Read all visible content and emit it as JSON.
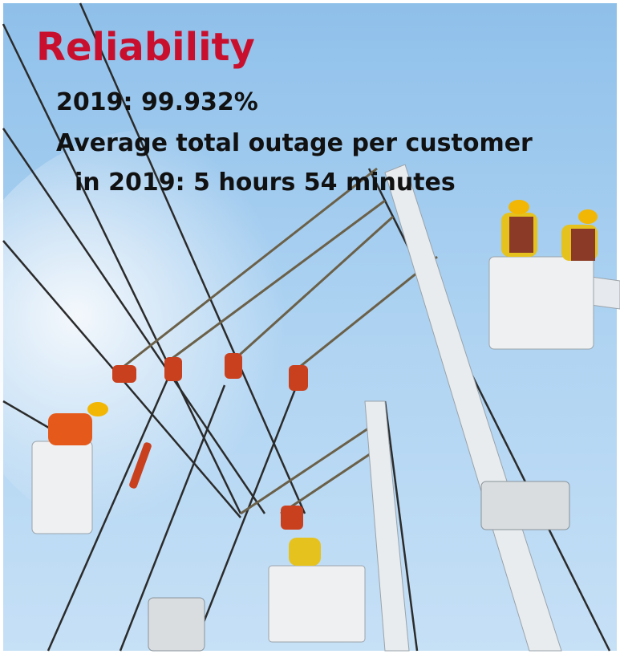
{
  "title": "Reliability",
  "lines": [
    "2019: 99.932%",
    "Average total outage per customer",
    "in 2019: 5 hours 54 minutes"
  ]
}
